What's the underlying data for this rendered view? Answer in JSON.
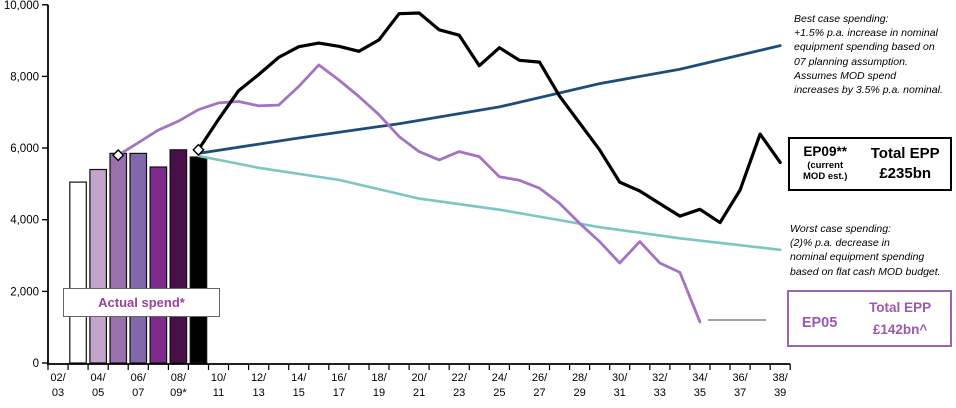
{
  "chart_data": {
    "type": "bar+line",
    "title": "",
    "xlabel": "",
    "ylabel": "",
    "ylim": [
      0,
      10000
    ],
    "grid": false,
    "y_tick_labels": [
      "10,000",
      "8,000",
      "6,000",
      "4,000",
      "2,000",
      "0"
    ],
    "y_tick_values": [
      10000,
      8000,
      6000,
      4000,
      2000,
      0
    ],
    "years": [
      "02/03",
      "03/04",
      "04/05",
      "05/06",
      "06/07",
      "07/08",
      "08/09",
      "09/10",
      "10/11",
      "11/12",
      "12/13",
      "13/14",
      "14/15",
      "15/16",
      "16/17",
      "17/18",
      "18/19",
      "19/20",
      "20/21",
      "21/22",
      "22/23",
      "23/24",
      "24/25",
      "25/26",
      "26/27",
      "27/28",
      "28/29",
      "29/30",
      "30/31",
      "31/32",
      "32/33",
      "33/34",
      "34/35",
      "35/36",
      "36/37",
      "37/38",
      "38/39"
    ],
    "x_tick_labels": [
      "02/03",
      "04/05",
      "06/07",
      "08/09*",
      "10/11",
      "12/13",
      "14/15",
      "16/17",
      "18/19",
      "20/21",
      "22/23",
      "24/25",
      "26/27",
      "28/29",
      "30/31",
      "32/33",
      "34/35",
      "36/37",
      "38/39"
    ],
    "x_tick_slots": [
      0,
      2,
      4,
      6,
      8,
      10,
      12,
      14,
      16,
      18,
      20,
      22,
      24,
      26,
      28,
      30,
      32,
      34,
      36
    ],
    "bars": {
      "name": "Actual spend",
      "years": [
        "03/04",
        "04/05",
        "05/06",
        "06/07",
        "07/08",
        "08/09",
        "09/10"
      ],
      "slots": [
        1,
        2,
        3,
        4,
        5,
        6,
        7
      ],
      "values": [
        5050,
        5400,
        5850,
        5850,
        5470,
        5950,
        5750
      ],
      "colors": [
        "#ffffff",
        "#c4a3cd",
        "#9a71ad",
        "#8168ab",
        "#7d2a8c",
        "#471049",
        "#000000"
      ],
      "stroke": "#111111"
    },
    "series": [
      {
        "name": "Worst case spending",
        "color": "#7cc6c4",
        "width": 2.6,
        "points": [
          [
            7,
            5780
          ],
          [
            10,
            5450
          ],
          [
            14,
            5110
          ],
          [
            18,
            4590
          ],
          [
            22,
            4280
          ],
          [
            25,
            3990
          ],
          [
            27,
            3790
          ],
          [
            31,
            3480
          ],
          [
            36,
            3160
          ]
        ]
      },
      {
        "name": "Best case spending",
        "color": "#1d4e79",
        "width": 2.8,
        "points": [
          [
            7,
            5850
          ],
          [
            12,
            6280
          ],
          [
            17,
            6680
          ],
          [
            22,
            7150
          ],
          [
            27,
            7800
          ],
          [
            31,
            8200
          ],
          [
            36,
            8860
          ]
        ]
      },
      {
        "name": "EP05",
        "color": "#a473c4",
        "width": 2.8,
        "points": [
          [
            3,
            5800
          ],
          [
            4,
            6150
          ],
          [
            5,
            6500
          ],
          [
            6,
            6750
          ],
          [
            7,
            7070
          ],
          [
            8,
            7260
          ],
          [
            9,
            7300
          ],
          [
            10,
            7180
          ],
          [
            11,
            7200
          ],
          [
            12,
            7720
          ],
          [
            13,
            8320
          ],
          [
            14,
            7900
          ],
          [
            15,
            7440
          ],
          [
            16,
            6930
          ],
          [
            17,
            6320
          ],
          [
            18,
            5900
          ],
          [
            19,
            5670
          ],
          [
            20,
            5900
          ],
          [
            21,
            5760
          ],
          [
            22,
            5200
          ],
          [
            23,
            5100
          ],
          [
            24,
            4880
          ],
          [
            25,
            4460
          ],
          [
            26,
            3900
          ],
          [
            27,
            3390
          ],
          [
            28,
            2790
          ],
          [
            29,
            3390
          ],
          [
            30,
            2790
          ],
          [
            31,
            2530
          ],
          [
            32,
            1150
          ]
        ]
      },
      {
        "name": "EP09",
        "color": "#000000",
        "width": 3.2,
        "points": [
          [
            7,
            5950
          ],
          [
            8,
            6800
          ],
          [
            9,
            7600
          ],
          [
            10,
            8050
          ],
          [
            11,
            8530
          ],
          [
            12,
            8830
          ],
          [
            13,
            8930
          ],
          [
            14,
            8840
          ],
          [
            15,
            8700
          ],
          [
            16,
            9020
          ],
          [
            17,
            9750
          ],
          [
            18,
            9770
          ],
          [
            19,
            9300
          ],
          [
            20,
            9150
          ],
          [
            21,
            8300
          ],
          [
            22,
            8800
          ],
          [
            23,
            8450
          ],
          [
            24,
            8400
          ],
          [
            25,
            7450
          ],
          [
            26,
            6700
          ],
          [
            27,
            5950
          ],
          [
            28,
            5050
          ],
          [
            29,
            4800
          ],
          [
            30,
            4450
          ],
          [
            31,
            4100
          ],
          [
            32,
            4290
          ],
          [
            33,
            3920
          ],
          [
            34,
            4830
          ],
          [
            35,
            6390
          ],
          [
            36,
            5600
          ]
        ]
      }
    ],
    "diamond_markers": [
      {
        "slot": 3,
        "value": 5800
      },
      {
        "slot": 7,
        "value": 5950
      }
    ],
    "leader_line": {
      "color": "#808080",
      "y_value": 1200,
      "from_slot": 32.4,
      "to_slot": 35.3
    }
  },
  "annotations": {
    "best_case": "Best case spending:\n+1.5% p.a. increase in nominal\nequipment spending based on\n07 planning assumption.\nAssumes MOD spend\nincreases by 3.5% p.a. nominal.",
    "worst_case": "Worst case spending:\n(2)% p.a. decrease in\nnominal equipment spending\nbased on flat cash MOD budget."
  },
  "boxes": {
    "ep09": {
      "name": "EP09**",
      "subtitle": "(current\nMOD est.)",
      "total_label": "Total EPP",
      "total_value": "£235bn"
    },
    "ep05": {
      "name": "EP05",
      "total_label": "Total EPP",
      "total_value": "£142bn^"
    },
    "actual_spend": {
      "label": "Actual spend*"
    }
  }
}
